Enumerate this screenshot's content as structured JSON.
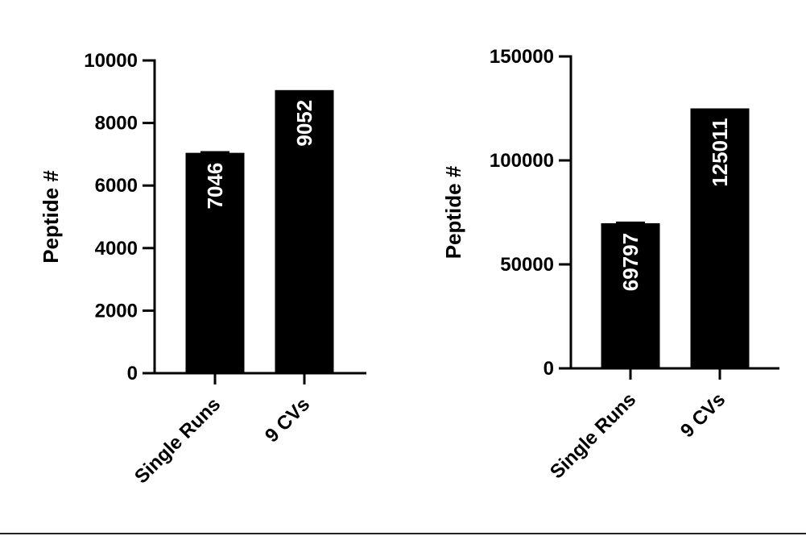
{
  "chart_data": [
    {
      "type": "bar",
      "ylabel": "Peptide #",
      "ylim": [
        0,
        10000
      ],
      "yticks": [
        0,
        2000,
        4000,
        6000,
        8000,
        10000
      ],
      "categories": [
        "Single Runs",
        "9 CVs"
      ],
      "values": [
        7046,
        9052
      ],
      "value_labels": [
        "7046",
        "9052"
      ],
      "error_bars": [
        {
          "low": 7030,
          "high": 7062
        },
        null
      ],
      "bar_color": "#000000"
    },
    {
      "type": "bar",
      "ylabel": "Peptide #",
      "ylim": [
        0,
        150000
      ],
      "yticks": [
        0,
        50000,
        100000,
        150000
      ],
      "categories": [
        "Single Runs",
        "9 CVs"
      ],
      "values": [
        69797,
        125011
      ],
      "value_labels": [
        "69797",
        "125011"
      ],
      "error_bars": [
        {
          "low": 69600,
          "high": 70000
        },
        null
      ],
      "bar_color": "#000000"
    }
  ]
}
